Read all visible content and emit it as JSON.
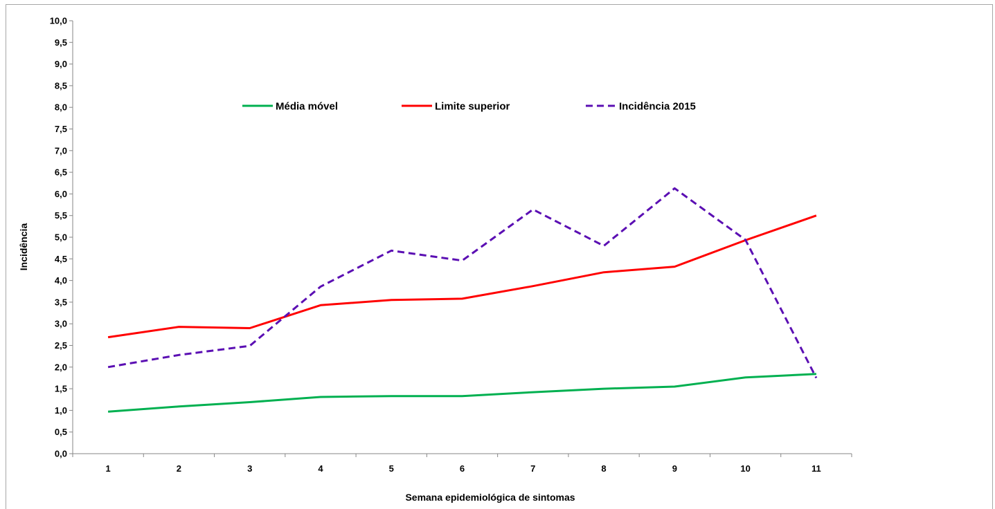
{
  "chart_data": {
    "type": "line",
    "title": "",
    "xlabel": "Semana epidemiológica de sintomas",
    "ylabel": "Incidência",
    "ylim": [
      0,
      10
    ],
    "ytick_step": 0.5,
    "grid": false,
    "legend_position": "top-center",
    "categories": [
      "1",
      "2",
      "3",
      "4",
      "5",
      "6",
      "7",
      "8",
      "9",
      "10",
      "11"
    ],
    "series": [
      {
        "name": "Média móvel",
        "color": "#00b050",
        "dash": "solid",
        "values": [
          0.97,
          1.09,
          1.19,
          1.31,
          1.33,
          1.33,
          1.42,
          1.5,
          1.55,
          1.76,
          1.84
        ]
      },
      {
        "name": "Limite superior",
        "color": "#ff0000",
        "dash": "solid",
        "values": [
          2.69,
          2.93,
          2.9,
          3.43,
          3.55,
          3.58,
          3.87,
          4.19,
          4.32,
          4.93,
          5.5
        ]
      },
      {
        "name": "Incidência 2015",
        "color": "#5b0fb3",
        "dash": "dashed",
        "values": [
          2.0,
          2.28,
          2.49,
          3.86,
          4.69,
          4.46,
          5.64,
          4.8,
          6.13,
          4.94,
          1.75
        ]
      }
    ]
  }
}
